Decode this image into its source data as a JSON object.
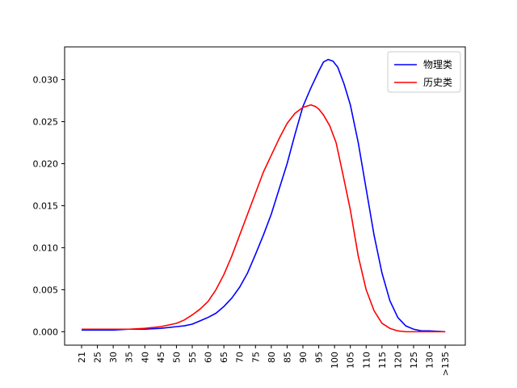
{
  "chart_data": {
    "type": "line",
    "title": "",
    "xlabel": "",
    "ylabel": "",
    "x_ticks": [
      "21",
      "25",
      "30",
      "35",
      "40",
      "45",
      "50",
      "55",
      "60",
      "65",
      "70",
      "75",
      "80",
      "85",
      "90",
      "95",
      "100",
      "105",
      "110",
      "115",
      "120",
      "125",
      "130",
      ">135"
    ],
    "ylim": [
      -0.0016,
      0.0339
    ],
    "y_ticks": [
      0.0,
      0.005,
      0.01,
      0.015,
      0.02,
      0.025,
      0.03
    ],
    "y_tick_labels": [
      "0.000",
      "0.005",
      "0.010",
      "0.015",
      "0.020",
      "0.025",
      "0.030"
    ],
    "grid": false,
    "legend_position": "top-right",
    "series": [
      {
        "name": "物理类",
        "color": "#0000ff",
        "x": [
          21,
          25,
          30,
          35,
          40,
          45,
          50,
          52.5,
          55,
          57.5,
          60,
          62.5,
          65,
          67.5,
          70,
          72.5,
          75,
          77.5,
          80,
          82.5,
          85,
          87.5,
          90,
          92.5,
          95,
          96.5,
          98,
          99.5,
          101,
          103,
          105,
          107.5,
          110,
          112.5,
          115,
          117.5,
          120,
          122.5,
          125,
          127.5,
          130,
          135
        ],
        "y": [
          0.0002,
          0.0002,
          0.0002,
          0.0003,
          0.0003,
          0.0004,
          0.0006,
          0.0007,
          0.0009,
          0.0013,
          0.0017,
          0.0022,
          0.003,
          0.004,
          0.0053,
          0.007,
          0.0092,
          0.0115,
          0.014,
          0.017,
          0.02,
          0.0235,
          0.0268,
          0.029,
          0.031,
          0.0321,
          0.0324,
          0.0322,
          0.0315,
          0.0295,
          0.027,
          0.0225,
          0.017,
          0.0115,
          0.007,
          0.0037,
          0.0017,
          0.0007,
          0.0003,
          0.0001,
          0.0001,
          0.0
        ]
      },
      {
        "name": "历史类",
        "color": "#ff0000",
        "x": [
          21,
          25,
          30,
          35,
          40,
          45,
          50,
          52.5,
          55,
          57.5,
          60,
          62.5,
          65,
          67.5,
          70,
          72.5,
          75,
          77.5,
          80,
          82.5,
          85,
          87.5,
          90,
          92.5,
          94,
          95,
          96.5,
          98.5,
          100.5,
          102.5,
          105,
          107.5,
          110,
          112.5,
          115,
          117.5,
          120,
          122.5,
          125,
          127.5,
          130,
          135
        ],
        "y": [
          0.0003,
          0.0003,
          0.0003,
          0.0003,
          0.0004,
          0.0006,
          0.001,
          0.0014,
          0.002,
          0.0027,
          0.0036,
          0.005,
          0.0068,
          0.009,
          0.0115,
          0.014,
          0.0165,
          0.019,
          0.021,
          0.023,
          0.0248,
          0.026,
          0.0267,
          0.027,
          0.0268,
          0.0265,
          0.0258,
          0.0245,
          0.0225,
          0.019,
          0.0145,
          0.009,
          0.005,
          0.0025,
          0.001,
          0.0004,
          0.0001,
          0.0,
          0.0,
          0.0,
          0.0,
          0.0
        ]
      }
    ]
  }
}
